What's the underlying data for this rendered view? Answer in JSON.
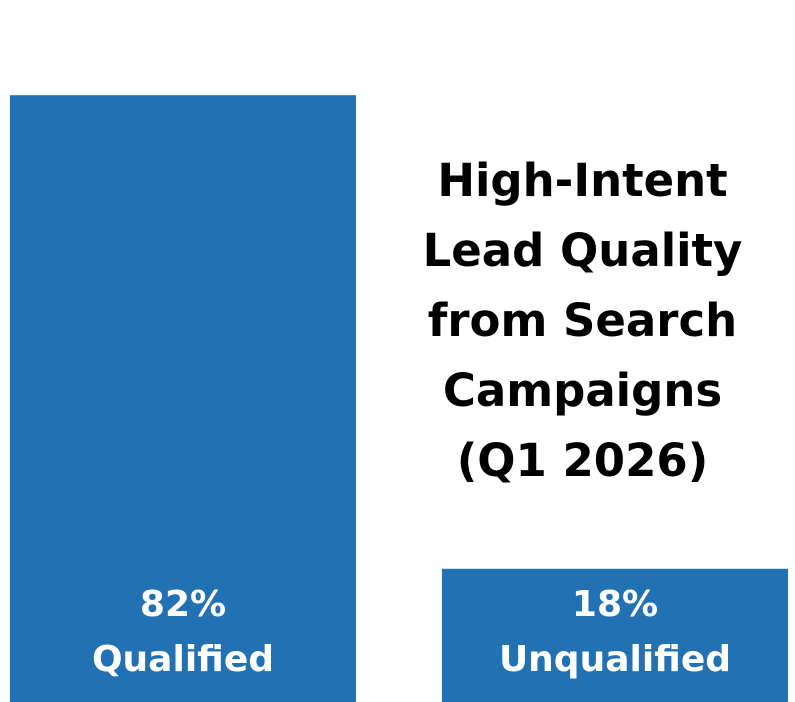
{
  "chart_data": {
    "type": "bar",
    "title": "High-Intent Lead Quality from Search Campaigns (Q1 2026)",
    "categories": [
      "Qualified",
      "Unqualified"
    ],
    "values": [
      82,
      18
    ],
    "value_labels": [
      "82%",
      "18%"
    ],
    "color": "#2271b3"
  }
}
